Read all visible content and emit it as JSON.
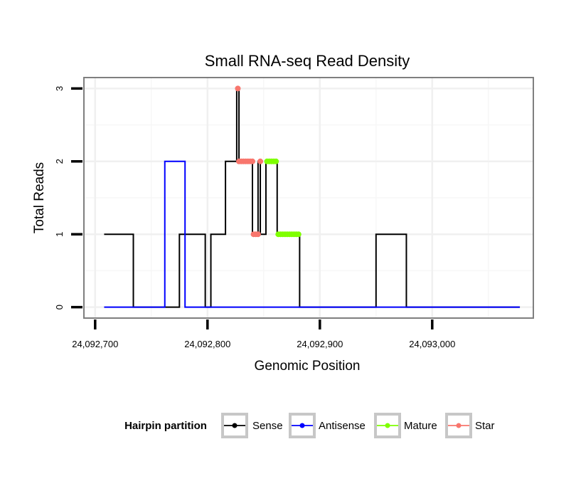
{
  "chart_data": {
    "type": "line",
    "title": "Small RNA-seq Read Density",
    "xlabel": "Genomic Position",
    "ylabel": "Total Reads",
    "xlim": [
      24092690,
      24093090
    ],
    "ylim": [
      -0.15,
      3.15
    ],
    "x_ticks": [
      24092700,
      24092800,
      24092900,
      24093000
    ],
    "x_tick_labels": [
      "24,092,700",
      "24,092,800",
      "24,092,900",
      "24,093,000"
    ],
    "y_ticks": [
      0,
      1,
      2,
      3
    ],
    "y_tick_labels": [
      "0",
      "1",
      "2",
      "3"
    ],
    "grid": true,
    "legend": {
      "title": "Hairpin partition",
      "position": "bottom",
      "entries": [
        "Sense",
        "Antisense",
        "Mature",
        "Star"
      ]
    },
    "series": [
      {
        "name": "Sense",
        "color": "#000000",
        "style": "step",
        "points": [
          [
            24092708,
            1
          ],
          [
            24092734,
            1
          ],
          [
            24092734,
            0
          ],
          [
            24092775,
            0
          ],
          [
            24092775,
            1
          ],
          [
            24092798,
            1
          ],
          [
            24092798,
            0
          ],
          [
            24092803,
            0
          ],
          [
            24092803,
            1
          ],
          [
            24092816,
            1
          ],
          [
            24092816,
            2
          ],
          [
            24092826,
            2
          ],
          [
            24092826,
            3
          ],
          [
            24092828,
            3
          ],
          [
            24092828,
            2
          ],
          [
            24092840,
            2
          ],
          [
            24092840,
            1
          ],
          [
            24092845,
            1
          ],
          [
            24092845,
            2
          ],
          [
            24092847,
            2
          ],
          [
            24092847,
            1
          ],
          [
            24092852,
            1
          ],
          [
            24092852,
            2
          ],
          [
            24092862,
            2
          ],
          [
            24092862,
            1
          ],
          [
            24092882,
            1
          ],
          [
            24092882,
            0
          ],
          [
            24092950,
            0
          ],
          [
            24092950,
            1
          ],
          [
            24092977,
            1
          ],
          [
            24092977,
            0
          ],
          [
            24093078,
            0
          ]
        ]
      },
      {
        "name": "Antisense",
        "color": "#0000ff",
        "style": "step",
        "points": [
          [
            24092708,
            0
          ],
          [
            24092762,
            0
          ],
          [
            24092762,
            2
          ],
          [
            24092780,
            2
          ],
          [
            24092780,
            0
          ],
          [
            24093078,
            0
          ]
        ]
      },
      {
        "name": "Mature",
        "color": "#7fff00",
        "style": "points",
        "points": [
          [
            24092853,
            2
          ],
          [
            24092855,
            2
          ],
          [
            24092857,
            2
          ],
          [
            24092859,
            2
          ],
          [
            24092861,
            2
          ],
          [
            24092863,
            1
          ],
          [
            24092865,
            1
          ],
          [
            24092867,
            1
          ],
          [
            24092869,
            1
          ],
          [
            24092871,
            1
          ],
          [
            24092873,
            1
          ],
          [
            24092875,
            1
          ],
          [
            24092877,
            1
          ],
          [
            24092879,
            1
          ],
          [
            24092881,
            1
          ]
        ]
      },
      {
        "name": "Star",
        "color": "#f8766d",
        "style": "points",
        "points": [
          [
            24092827,
            3
          ],
          [
            24092828,
            2
          ],
          [
            24092830,
            2
          ],
          [
            24092832,
            2
          ],
          [
            24092834,
            2
          ],
          [
            24092836,
            2
          ],
          [
            24092838,
            2
          ],
          [
            24092840,
            2
          ],
          [
            24092841,
            1
          ],
          [
            24092843,
            1
          ],
          [
            24092845,
            1
          ],
          [
            24092847,
            2
          ]
        ]
      }
    ]
  }
}
